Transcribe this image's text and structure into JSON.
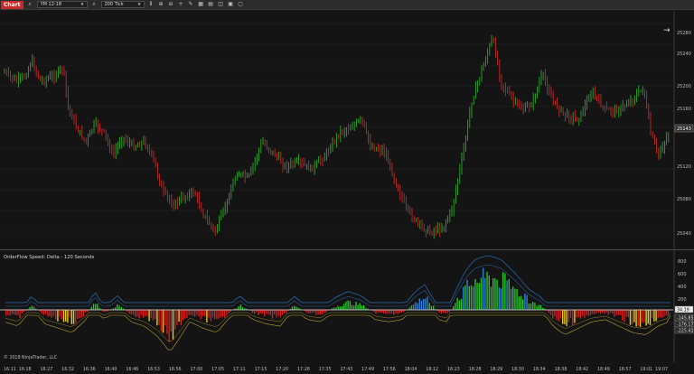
{
  "toolbar": {
    "chart_label": "Chart",
    "instrument": "YM 12-18",
    "interval": "200 Tick",
    "tools": [
      "bar-style-icon",
      "zoom-in-icon",
      "zoom-out-icon",
      "crosshair-icon",
      "pencil-icon",
      "properties-icon",
      "indicators-icon",
      "strategies-icon",
      "templates-icon",
      "data-box-icon"
    ]
  },
  "price_axis": {
    "labels": [
      "25280",
      "25240",
      "25200",
      "25160",
      "25140",
      "25120",
      "25080",
      "25040"
    ],
    "current_price": "25143"
  },
  "indicator": {
    "title": "OrderFlow Speed: Delta - 120 Seconds",
    "axis_labels": [
      "800",
      "600",
      "400",
      "200"
    ],
    "value_tags": [
      "34.19",
      "-145.85",
      "-176.17",
      "-225.41"
    ],
    "copyright": "© 2018 NinjaTrader, LLC"
  },
  "time_axis": {
    "labels": [
      "16:11",
      "16:18",
      "16:27",
      "16:32",
      "16:36",
      "16:40",
      "16:46",
      "16:53",
      "16:56",
      "17:00",
      "17:05",
      "17:11",
      "17:15",
      "17:20",
      "17:28",
      "17:35",
      "17:43",
      "17:49",
      "17:56",
      "18:04",
      "18:12",
      "18:23",
      "18:28",
      "18:29",
      "18:30",
      "18:34",
      "18:38",
      "18:42",
      "18:49",
      "18:57",
      "19:01",
      "19:07"
    ]
  },
  "colors": {
    "up": "#2ea62e",
    "down": "#c22a2a",
    "delta_pos": "#22c422",
    "delta_pos_strong": "#2e7fd8",
    "delta_neg": "#cf1f1f",
    "delta_neg_strong": "#e6c81a",
    "band": "#2c6fb8",
    "band_low": "#b8a22a"
  }
}
